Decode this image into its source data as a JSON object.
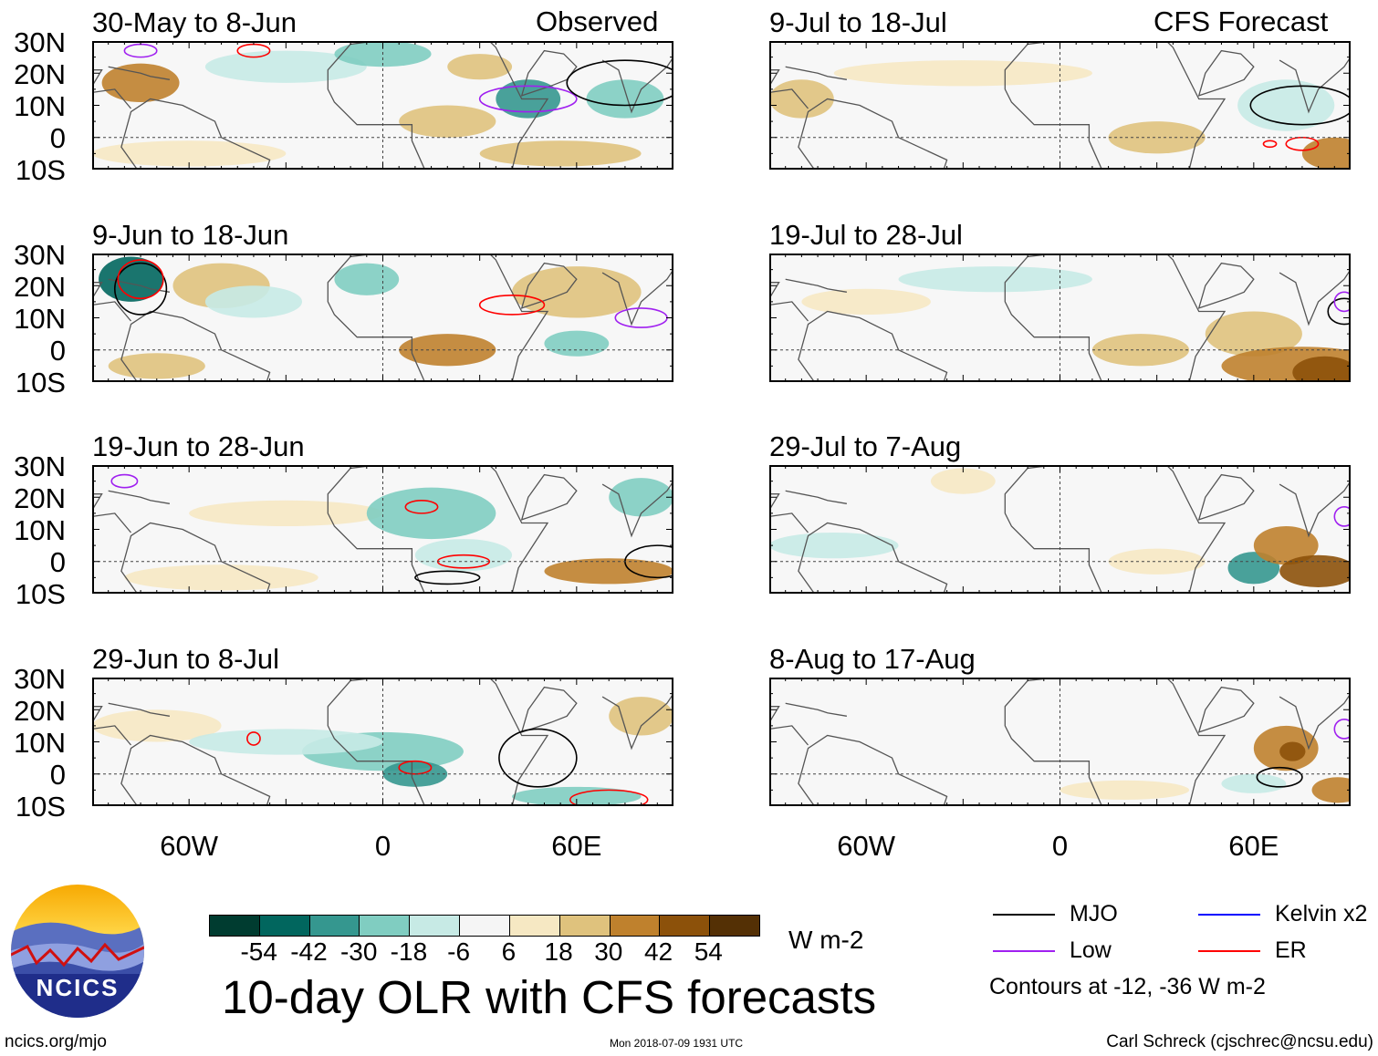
{
  "panels": {
    "observed_header": "Observed",
    "forecast_header": "CFS Forecast",
    "left": [
      "30-May to 8-Jun",
      "9-Jun to 18-Jun",
      "19-Jun to 28-Jun",
      "29-Jun to 8-Jul"
    ],
    "right": [
      "9-Jul to 18-Jul",
      "19-Jul to 28-Jul",
      "29-Jul to 7-Aug",
      "8-Aug to 17-Aug"
    ]
  },
  "axes": {
    "lat_labels": [
      "30N",
      "20N",
      "10N",
      "0",
      "10S"
    ],
    "lon_labels": [
      "60W",
      "0",
      "60E"
    ]
  },
  "colorbar": {
    "labels": [
      "-54",
      "-42",
      "-30",
      "-18",
      "-6",
      "6",
      "18",
      "30",
      "42",
      "54"
    ],
    "colors": [
      "#003c30",
      "#01665e",
      "#35978f",
      "#80cdc1",
      "#c7eae5",
      "#f5f5f5",
      "#f6e8c3",
      "#dfc27d",
      "#bf812d",
      "#8c510a",
      "#543005"
    ],
    "units": "W m-2"
  },
  "title": "10-day OLR with CFS forecasts",
  "legend": {
    "items": [
      {
        "label": "MJO",
        "color": "#000000"
      },
      {
        "label": "Kelvin x2",
        "color": "#0000ff"
      },
      {
        "label": "Low",
        "color": "#a020f0"
      },
      {
        "label": "ER",
        "color": "#ff0000"
      }
    ],
    "note": "Contours at -12, -36 W m-2"
  },
  "logo": {
    "text": "NCICS"
  },
  "footer": {
    "url": "ncics.org/mjo",
    "timestamp": "Mon 2018-07-09 1931 UTC",
    "author": "Carl Schreck (cjschrec@ncsu.edu)"
  }
}
